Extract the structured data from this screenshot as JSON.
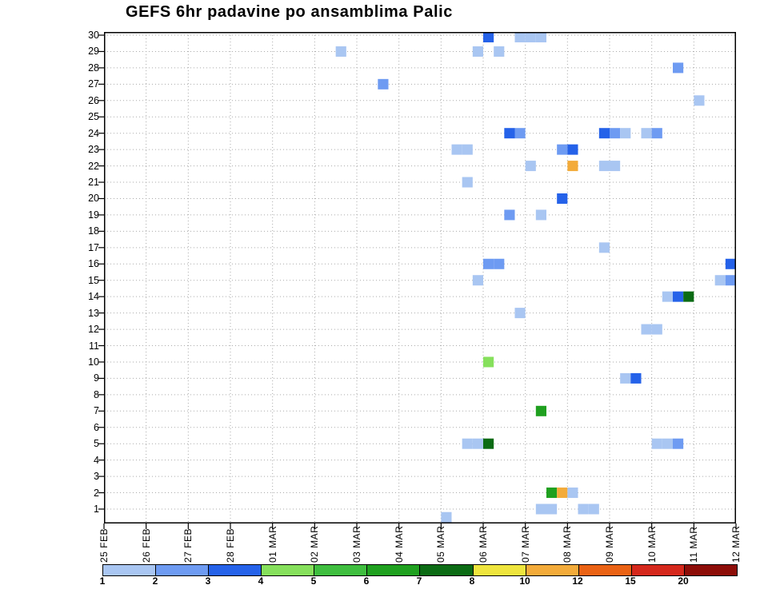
{
  "chart_data": {
    "type": "heatmap",
    "title": "GEFS 6hr padavine po ansamblima Palic",
    "x_ticks": [
      "25 FEB",
      "26 FEB",
      "27 FEB",
      "28 FEB",
      "01 MAR",
      "02 MAR",
      "03 MAR",
      "04 MAR",
      "05 MAR",
      "06 MAR",
      "07 MAR",
      "08 MAR",
      "09 MAR",
      "10 MAR",
      "11 MAR",
      "12 MAR"
    ],
    "y_ticks": [
      30,
      29,
      28,
      27,
      26,
      25,
      24,
      23,
      22,
      21,
      20,
      19,
      18,
      17,
      16,
      15,
      14,
      13,
      12,
      11,
      10,
      9,
      8,
      7,
      6,
      5,
      4,
      3,
      2,
      1
    ],
    "n_cols": 60,
    "cols_per_day": 4,
    "grid": "dotted",
    "grid_color": "#aaaaaa",
    "frame_color": "#000000",
    "legend": {
      "values": [
        "1",
        "2",
        "3",
        "4",
        "5",
        "6",
        "7",
        "8",
        "10",
        "12",
        "15",
        "20"
      ],
      "colors": [
        "#a9c6f2",
        "#6e9bf2",
        "#2562e9",
        "#86e05c",
        "#3fbe3f",
        "#1fa01f",
        "#0b6b14",
        "#efe53e",
        "#f3ab3a",
        "#ea6214",
        "#d5281c",
        "#8d0d08"
      ]
    },
    "cells": [
      {
        "m": 30,
        "c": 36,
        "v": 3
      },
      {
        "m": 30,
        "c": 39,
        "v": 1
      },
      {
        "m": 30,
        "c": 40,
        "v": 1
      },
      {
        "m": 30,
        "c": 41,
        "v": 1
      },
      {
        "m": 29,
        "c": 22,
        "v": 1
      },
      {
        "m": 29,
        "c": 35,
        "v": 1
      },
      {
        "m": 29,
        "c": 37,
        "v": 1
      },
      {
        "m": 28,
        "c": 54,
        "v": 2
      },
      {
        "m": 27,
        "c": 26,
        "v": 2
      },
      {
        "m": 26,
        "c": 56,
        "v": 1
      },
      {
        "m": 24,
        "c": 38,
        "v": 3
      },
      {
        "m": 24,
        "c": 39,
        "v": 2
      },
      {
        "m": 24,
        "c": 47,
        "v": 3
      },
      {
        "m": 24,
        "c": 48,
        "v": 2
      },
      {
        "m": 24,
        "c": 49,
        "v": 1
      },
      {
        "m": 24,
        "c": 51,
        "v": 1
      },
      {
        "m": 24,
        "c": 52,
        "v": 2
      },
      {
        "m": 23,
        "c": 33,
        "v": 1
      },
      {
        "m": 23,
        "c": 34,
        "v": 1
      },
      {
        "m": 23,
        "c": 43,
        "v": 2
      },
      {
        "m": 23,
        "c": 44,
        "v": 3
      },
      {
        "m": 22,
        "c": 40,
        "v": 1
      },
      {
        "m": 22,
        "c": 44,
        "v": 10
      },
      {
        "m": 22,
        "c": 47,
        "v": 1
      },
      {
        "m": 22,
        "c": 48,
        "v": 1
      },
      {
        "m": 21,
        "c": 34,
        "v": 1
      },
      {
        "m": 20,
        "c": 43,
        "v": 3
      },
      {
        "m": 19,
        "c": 38,
        "v": 2
      },
      {
        "m": 19,
        "c": 41,
        "v": 1
      },
      {
        "m": 17,
        "c": 47,
        "v": 1
      },
      {
        "m": 16,
        "c": 36,
        "v": 2
      },
      {
        "m": 16,
        "c": 37,
        "v": 2
      },
      {
        "m": 16,
        "c": 59,
        "v": 3
      },
      {
        "m": 15,
        "c": 35,
        "v": 1
      },
      {
        "m": 15,
        "c": 58,
        "v": 1
      },
      {
        "m": 15,
        "c": 59,
        "v": 2
      },
      {
        "m": 14,
        "c": 53,
        "v": 1
      },
      {
        "m": 14,
        "c": 54,
        "v": 3
      },
      {
        "m": 14,
        "c": 55,
        "v": 7
      },
      {
        "m": 13,
        "c": 39,
        "v": 1
      },
      {
        "m": 12,
        "c": 51,
        "v": 1
      },
      {
        "m": 12,
        "c": 52,
        "v": 1
      },
      {
        "m": 10,
        "c": 36,
        "v": 4
      },
      {
        "m": 9,
        "c": 49,
        "v": 1
      },
      {
        "m": 9,
        "c": 50,
        "v": 3
      },
      {
        "m": 7,
        "c": 41,
        "v": 6
      },
      {
        "m": 5,
        "c": 34,
        "v": 1
      },
      {
        "m": 5,
        "c": 35,
        "v": 1
      },
      {
        "m": 5,
        "c": 36,
        "v": 7
      },
      {
        "m": 5,
        "c": 52,
        "v": 1
      },
      {
        "m": 5,
        "c": 53,
        "v": 1
      },
      {
        "m": 5,
        "c": 54,
        "v": 2
      },
      {
        "m": 2,
        "c": 42,
        "v": 6
      },
      {
        "m": 2,
        "c": 43,
        "v": 10
      },
      {
        "m": 2,
        "c": 44,
        "v": 1
      },
      {
        "m": 1,
        "c": 41,
        "v": 1
      },
      {
        "m": 1,
        "c": 42,
        "v": 1
      },
      {
        "m": 1,
        "c": 45,
        "v": 1
      },
      {
        "m": 1,
        "c": 46,
        "v": 1
      },
      {
        "m": 0.5,
        "c": 32,
        "v": 1
      }
    ]
  }
}
